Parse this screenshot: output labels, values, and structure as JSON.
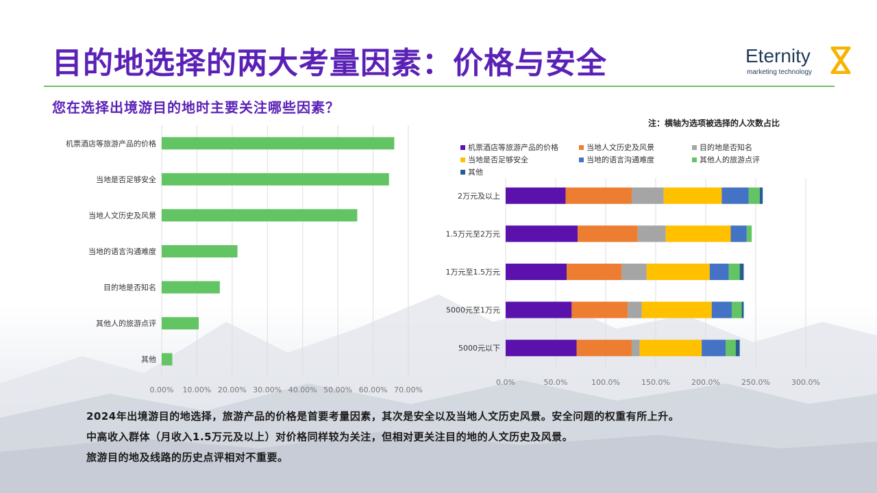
{
  "title": "目的地选择的两大考量因素：价格与安全",
  "logo": {
    "name": "Eternity",
    "tagline": "marketing technology"
  },
  "subtitle": "您在选择出境游目的地时主要关注哪些因素？",
  "note": "注：横轴为选项被选择的人次数占比",
  "colors": {
    "accent": "#5b21b6",
    "bar_green": "#62c463",
    "rule_green": "#6cbf5e"
  },
  "chart_data": [
    {
      "type": "bar",
      "orientation": "horizontal",
      "categories": [
        "机票酒店等旅游产品的价格",
        "当地是否足够安全",
        "当地人文历史及风景",
        "当地的语言沟通难度",
        "目的地是否知名",
        "其他人的旅游点评",
        "其他"
      ],
      "values": [
        66.0,
        64.5,
        55.5,
        21.5,
        16.5,
        10.5,
        3.0
      ],
      "ticks": [
        "0.00%",
        "10.00%",
        "20.00%",
        "30.00%",
        "40.00%",
        "50.00%",
        "60.00%",
        "70.00%"
      ],
      "xlim": [
        0,
        70
      ],
      "color": "#62c463",
      "grid": true
    },
    {
      "type": "bar",
      "orientation": "horizontal",
      "stacked": true,
      "categories": [
        "2万元及以上",
        "1.5万元至2万元",
        "1万元至1.5万元",
        "5000元至1万元",
        "5000元以下"
      ],
      "series": [
        {
          "name": "机票酒店等旅游产品的价格",
          "color": "#5b12ac",
          "values": [
            60,
            72,
            61,
            66,
            71
          ]
        },
        {
          "name": "当地人文历史及风景",
          "color": "#ed7d31",
          "values": [
            66,
            60,
            55,
            56,
            55
          ]
        },
        {
          "name": "目的地是否知名",
          "color": "#a5a5a5",
          "values": [
            32,
            28,
            25,
            14,
            8
          ]
        },
        {
          "name": "当地是否足够安全",
          "color": "#ffc000",
          "values": [
            58,
            65,
            63,
            70,
            62
          ]
        },
        {
          "name": "当地的语言沟通难度",
          "color": "#4472c4",
          "values": [
            27,
            16,
            19,
            20,
            24
          ]
        },
        {
          "name": "其他人的旅游点评",
          "color": "#62c463",
          "values": [
            11,
            5,
            11,
            10,
            10
          ]
        },
        {
          "name": "其他",
          "color": "#255e91",
          "values": [
            3,
            0,
            4,
            2,
            4
          ]
        }
      ],
      "ticks": [
        "0.0%",
        "50.0%",
        "100.0%",
        "150.0%",
        "200.0%",
        "250.0%",
        "300.0%"
      ],
      "xlim": [
        0,
        300
      ],
      "legend": "top",
      "grid": true
    }
  ],
  "footer": [
    "2024年出境游目的地选择，旅游产品的价格是首要考量因素，其次是安全以及当地人文历史风景。安全问题的权重有所上升。",
    "中高收入群体（月收入1.5万元及以上）对价格同样较为关注，但相对更关注目的地的人文历史及风景。",
    "旅游目的地及线路的历史点评相对不重要。"
  ]
}
